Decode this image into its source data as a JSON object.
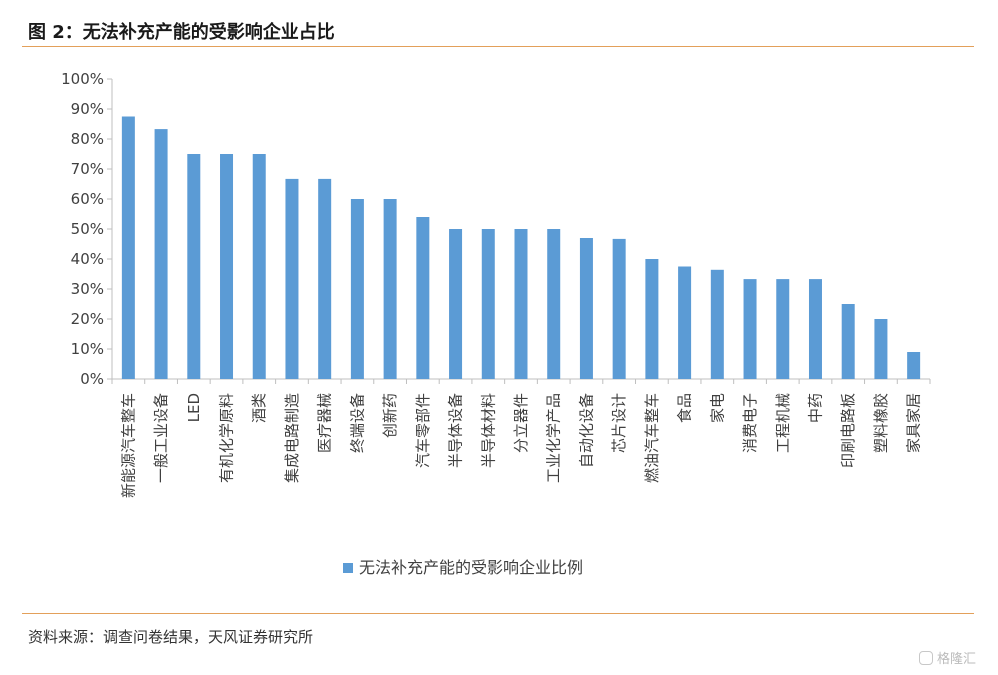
{
  "title": "图 2：无法补充产能的受影响企业占比",
  "source": "资料来源：调查问卷结果，天风证券研究所",
  "watermark": "格隆汇",
  "colors": {
    "bar": "#5b9bd5",
    "rule": "#e3a05a",
    "axis": "#bfbfbf",
    "text": "#404040"
  },
  "chart_data": {
    "type": "bar",
    "categories": [
      "新能源汽车整车",
      "一般工业设备",
      "LED",
      "有机化学原料",
      "酒类",
      "集成电路制造",
      "医疗器械",
      "终端设备",
      "创新药",
      "汽车零部件",
      "半导体设备",
      "半导体材料",
      "分立器件",
      "工业化学产品",
      "自动化设备",
      "芯片设计",
      "燃油汽车整车",
      "食品",
      "家电",
      "消费电子",
      "工程机械",
      "中药",
      "印刷电路板",
      "塑料橡胶",
      "家具家居"
    ],
    "series": [
      {
        "name": "无法补充产能的受影响企业比例",
        "values": [
          87.5,
          83.3,
          75,
          75,
          75,
          66.7,
          66.7,
          60,
          60,
          54,
          50,
          50,
          50,
          50,
          47,
          46.7,
          40,
          37.5,
          36.4,
          33.3,
          33.3,
          33.3,
          25,
          20,
          9
        ]
      }
    ],
    "yticks": [
      "0%",
      "10%",
      "20%",
      "30%",
      "40%",
      "50%",
      "60%",
      "70%",
      "80%",
      "90%",
      "100%"
    ],
    "ylim": [
      0,
      100
    ],
    "grid": false,
    "legend": "bottom-center"
  }
}
